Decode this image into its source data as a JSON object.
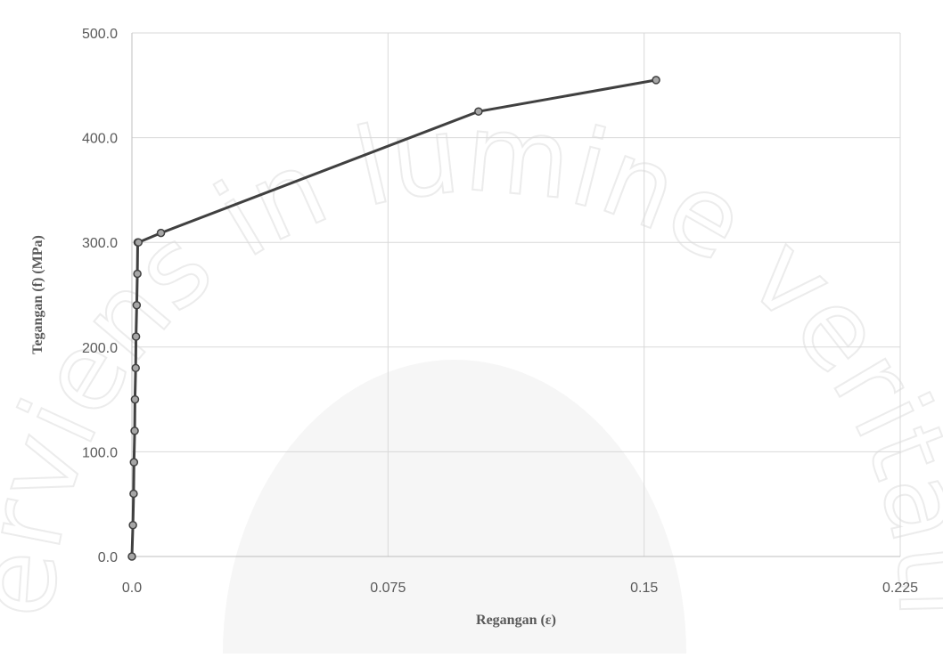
{
  "watermark": {
    "text": "serviens in lumine veritatis"
  },
  "chart_data": {
    "type": "line",
    "xlabel": "Regangan (ε)",
    "ylabel": "Tegangan (f) (MPa)",
    "xlim": [
      0,
      0.225
    ],
    "ylim": [
      0,
      500
    ],
    "x_ticks": [
      0,
      0.075,
      0.15,
      0.225
    ],
    "x_tick_labels": [
      "0.0",
      "0.075",
      "0.15",
      "0.225"
    ],
    "y_ticks": [
      0,
      100,
      200,
      300,
      400,
      500
    ],
    "y_tick_labels": [
      "0.0",
      "100.0",
      "200.0",
      "300.0",
      "400.0",
      "500.0"
    ],
    "grid": true,
    "legend": "none",
    "colors": {
      "line": "#404040",
      "marker_fill": "#a6a6a6",
      "marker_edge": "#404040"
    },
    "series": [
      {
        "x": [
          0.0,
          0.0003,
          0.0005,
          0.0006,
          0.0008,
          0.0009,
          0.0011,
          0.0012,
          0.0014,
          0.0016,
          0.0017,
          0.0019,
          0.0085,
          0.1015,
          0.1535
        ],
        "y": [
          0,
          30,
          60,
          90,
          120,
          150,
          180,
          210,
          240,
          270,
          300,
          300,
          309,
          425,
          455
        ]
      }
    ]
  }
}
